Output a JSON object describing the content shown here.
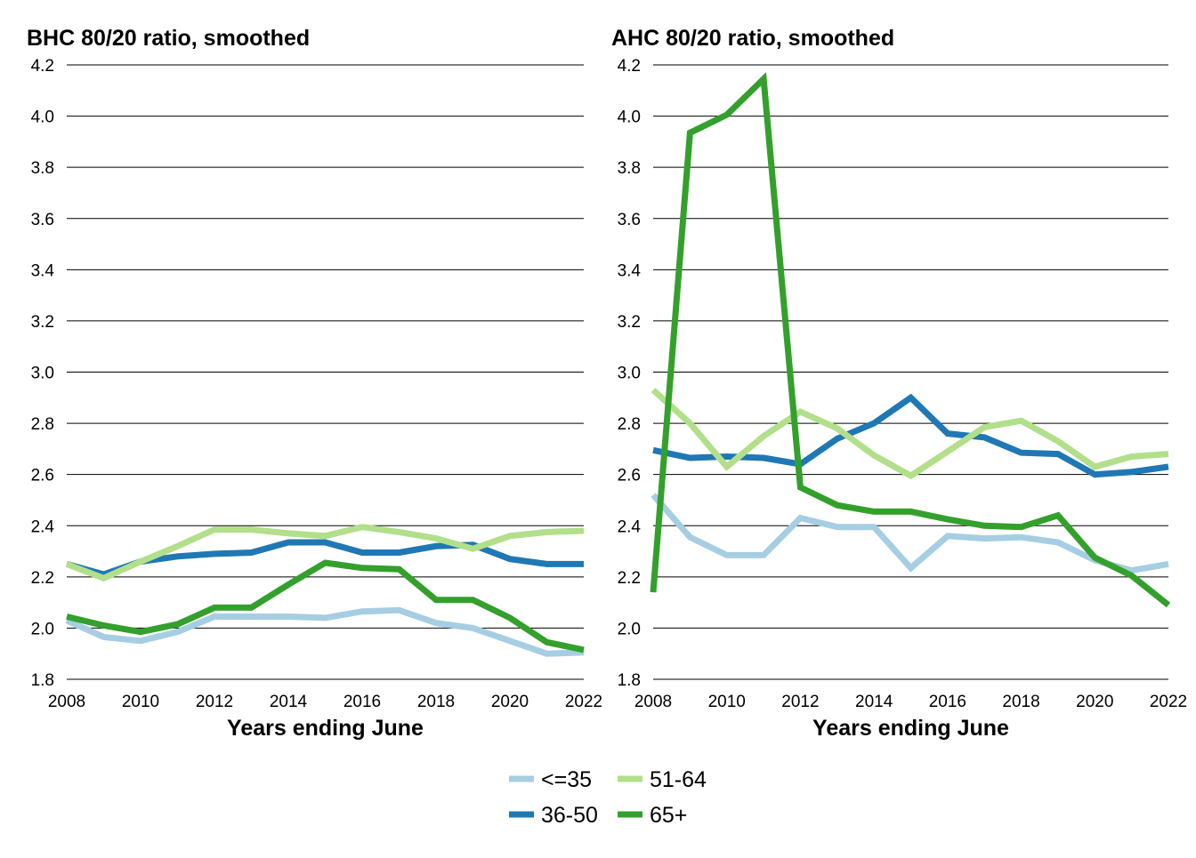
{
  "chart_data": [
    {
      "type": "line",
      "title": "BHC 80/20 ratio, smoothed",
      "xlabel": "Years ending June",
      "ylabel": "",
      "xlim": [
        2008,
        2022
      ],
      "ylim": [
        1.8,
        4.2
      ],
      "x_ticks": [
        "2008",
        "2010",
        "2012",
        "2014",
        "2016",
        "2018",
        "2020",
        "2022"
      ],
      "y_ticks": [
        "1.8",
        "2.0",
        "2.2",
        "2.4",
        "2.6",
        "2.8",
        "3.0",
        "3.2",
        "3.4",
        "3.6",
        "3.8",
        "4.0",
        "4.2"
      ],
      "grid": "horizontal",
      "x": [
        2008,
        2009,
        2010,
        2011,
        2012,
        2013,
        2014,
        2015,
        2016,
        2017,
        2018,
        2019,
        2020,
        2021,
        2022
      ],
      "series": [
        {
          "name": "<=35",
          "color": "#a6cee3",
          "values": [
            2.03,
            1.965,
            1.95,
            1.985,
            2.045,
            2.045,
            2.045,
            2.04,
            2.065,
            2.07,
            2.02,
            2.0,
            1.95,
            1.9,
            1.905
          ]
        },
        {
          "name": "36-50",
          "color": "#1f78b4",
          "values": [
            2.25,
            2.21,
            2.26,
            2.28,
            2.29,
            2.295,
            2.335,
            2.335,
            2.295,
            2.295,
            2.32,
            2.325,
            2.27,
            2.25,
            2.25
          ]
        },
        {
          "name": "51-64",
          "color": "#b2df8a",
          "values": [
            2.25,
            2.195,
            2.26,
            2.32,
            2.385,
            2.385,
            2.37,
            2.36,
            2.395,
            2.375,
            2.35,
            2.31,
            2.36,
            2.375,
            2.38
          ]
        },
        {
          "name": "65+",
          "color": "#33a02c",
          "values": [
            2.045,
            2.01,
            1.985,
            2.015,
            2.08,
            2.08,
            2.17,
            2.255,
            2.235,
            2.23,
            2.11,
            2.11,
            2.04,
            1.945,
            1.915
          ]
        }
      ]
    },
    {
      "type": "line",
      "title": "AHC 80/20 ratio, smoothed",
      "xlabel": "Years ending June",
      "ylabel": "",
      "xlim": [
        2008,
        2022
      ],
      "ylim": [
        1.8,
        4.2
      ],
      "x_ticks": [
        "2008",
        "2010",
        "2012",
        "2014",
        "2016",
        "2018",
        "2020",
        "2022"
      ],
      "y_ticks": [
        "1.8",
        "2.0",
        "2.2",
        "2.4",
        "2.6",
        "2.8",
        "3.0",
        "3.2",
        "3.4",
        "3.6",
        "3.8",
        "4.0",
        "4.2"
      ],
      "grid": "horizontal",
      "x": [
        2008,
        2009,
        2010,
        2011,
        2012,
        2013,
        2014,
        2015,
        2016,
        2017,
        2018,
        2019,
        2020,
        2021,
        2022
      ],
      "series": [
        {
          "name": "<=35",
          "color": "#a6cee3",
          "values": [
            2.52,
            2.355,
            2.285,
            2.285,
            2.43,
            2.395,
            2.395,
            2.235,
            2.36,
            2.35,
            2.355,
            2.335,
            2.265,
            2.225,
            2.25
          ]
        },
        {
          "name": "36-50",
          "color": "#1f78b4",
          "values": [
            2.695,
            2.665,
            2.67,
            2.665,
            2.64,
            2.74,
            2.8,
            2.9,
            2.76,
            2.745,
            2.685,
            2.68,
            2.6,
            2.61,
            2.63
          ]
        },
        {
          "name": "51-64",
          "color": "#b2df8a",
          "values": [
            2.93,
            2.8,
            2.63,
            2.75,
            2.845,
            2.78,
            2.675,
            2.595,
            2.69,
            2.785,
            2.81,
            2.73,
            2.63,
            2.67,
            2.68
          ]
        },
        {
          "name": "65+",
          "color": "#33a02c",
          "values": [
            2.14,
            3.935,
            4.005,
            4.145,
            2.55,
            2.48,
            2.455,
            2.455,
            2.425,
            2.4,
            2.395,
            2.44,
            2.275,
            2.205,
            2.09
          ]
        }
      ]
    }
  ],
  "legend": {
    "placement": "bottom",
    "items": [
      {
        "label": "<=35",
        "color": "#a6cee3"
      },
      {
        "label": "51-64",
        "color": "#b2df8a"
      },
      {
        "label": "36-50",
        "color": "#1f78b4"
      },
      {
        "label": "65+",
        "color": "#33a02c"
      }
    ]
  }
}
